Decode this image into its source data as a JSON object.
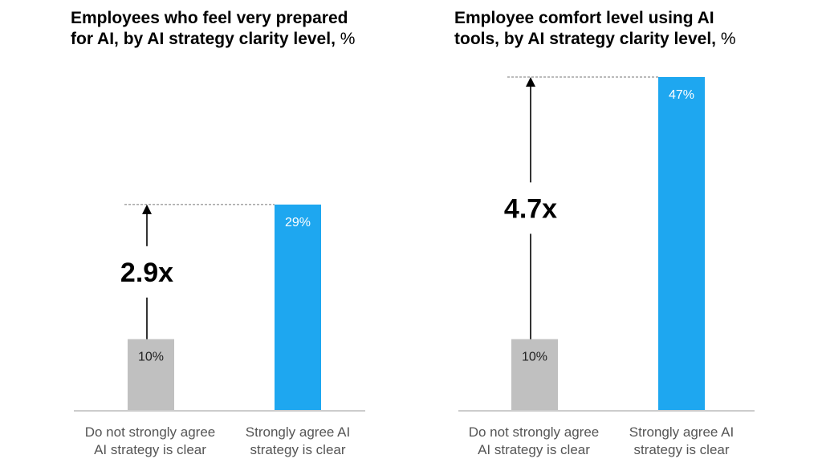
{
  "colors": {
    "bar_low": "#c0c0c0",
    "bar_high": "#1ea7f0",
    "axis": "#999999",
    "dashed": "#777777"
  },
  "chart_data": [
    {
      "type": "bar",
      "title_lines": [
        "Employees who feel very prepared",
        "for AI, by AI strategy clarity level, "
      ],
      "title_unit": "%",
      "categories": [
        [
          "Do not strongly agree",
          "AI strategy is clear"
        ],
        [
          "Strongly agree AI",
          "strategy is clear"
        ]
      ],
      "values": [
        10,
        29
      ],
      "labels": [
        "10%",
        "29%"
      ],
      "multiplier": "2.9x",
      "ylim": [
        0,
        47
      ]
    },
    {
      "type": "bar",
      "title_lines": [
        "Employee comfort level using AI",
        "tools, by AI strategy clarity level, "
      ],
      "title_unit": "%",
      "categories": [
        [
          "Do not strongly agree",
          "AI strategy is clear"
        ],
        [
          "Strongly agree AI",
          "strategy is clear"
        ]
      ],
      "values": [
        10,
        47
      ],
      "labels": [
        "10%",
        "47%"
      ],
      "multiplier": "4.7x",
      "ylim": [
        0,
        47
      ]
    }
  ]
}
